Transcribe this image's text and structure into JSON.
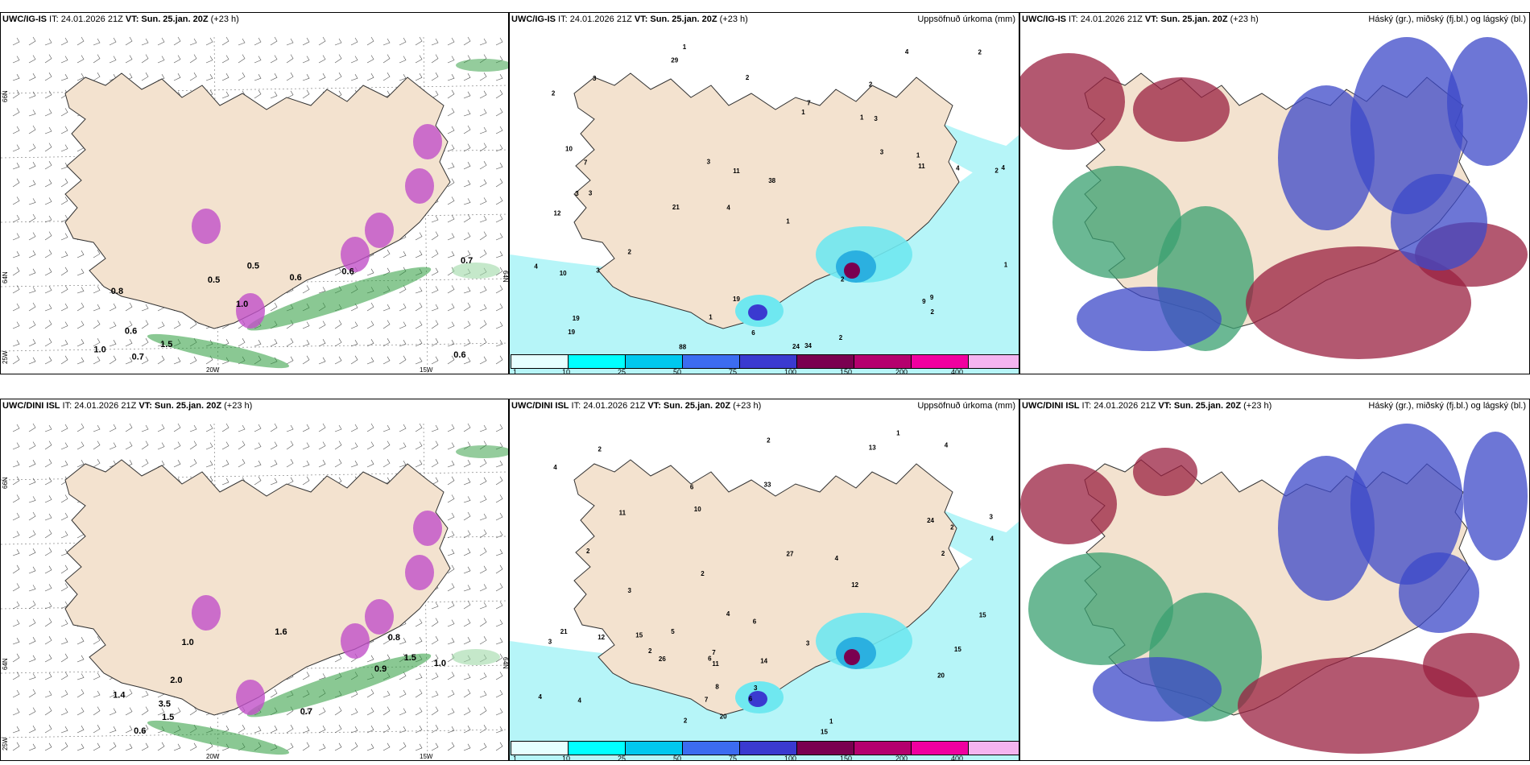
{
  "rows": [
    {
      "wind": {
        "header_model": "UWC/IG-IS",
        "header_it": " IT: 24.01.2026 21Z ",
        "header_vt": "VT: Sun. 25.jan. 20Z",
        "header_lead": " (+23 h)",
        "lat_labels": [
          "66N",
          "64N",
          "25W"
        ],
        "lon_labels": [
          "20W",
          "15W"
        ],
        "side_label": "64N",
        "values": [
          "0.6",
          "0.8",
          "0.7",
          "1.0",
          "0.6",
          "0.7",
          "0.5",
          "0.6",
          "0.6",
          "0.5",
          "1.0",
          "1.5"
        ]
      },
      "precip": {
        "header_model": "UWC/IG-IS",
        "header_it": " IT: 24.01.2026 21Z ",
        "header_vt": "VT: Sun. 25.jan. 20Z",
        "header_lead": " (+23 h)",
        "title_right": "Uppsöfnuð úrkoma (mm)",
        "values": [
          "1",
          "2",
          "2",
          "4",
          "1",
          "3",
          "2",
          "1",
          "12",
          "1",
          "38",
          "19",
          "29",
          "21",
          "24",
          "34",
          "19",
          "4",
          "3",
          "2",
          "7",
          "3",
          "4",
          "4",
          "4",
          "10",
          "11",
          "11",
          "9",
          "10",
          "9",
          "7",
          "3",
          "3",
          "2",
          "1",
          "1",
          "1",
          "2",
          "2",
          "19",
          "88",
          "2",
          "3",
          "6",
          "3",
          "2"
        ]
      },
      "cloud": {
        "header_model": "UWC/IG-IS",
        "header_it": " IT: 24.01.2026 21Z ",
        "header_vt": "VT: Sun. 25.jan. 20Z",
        "header_lead": " (+23 h)",
        "title_right": "Háský (gr.), miðský (fj.bl.) og lágský (bl.)"
      }
    },
    {
      "wind": {
        "header_model": "UWC/DINI ISL",
        "header_it": " IT: 24.01.2026 21Z ",
        "header_vt": "VT: Sun. 25.jan. 20Z",
        "header_lead": " (+23 h)",
        "lat_labels": [
          "66N",
          "64N",
          "25W"
        ],
        "lon_labels": [
          "20W",
          "15W"
        ],
        "side_label": "64N",
        "values": [
          "0.6",
          "0.8",
          "1.0",
          "1.5",
          "0.7",
          "2.0",
          "3.5",
          "1.5",
          "1.0",
          "0.9",
          "1.4",
          "1.6"
        ]
      },
      "precip": {
        "header_model": "UWC/DINI ISL",
        "header_it": " IT: 24.01.2026 21Z ",
        "header_vt": "VT: Sun. 25.jan. 20Z",
        "header_lead": " (+23 h)",
        "title_right": "Uppsöfnuð úrkoma (mm)",
        "values": [
          "3",
          "2",
          "1",
          "4",
          "3",
          "4",
          "3",
          "7",
          "15",
          "13",
          "20",
          "15",
          "24",
          "20",
          "27",
          "26",
          "21",
          "10",
          "6",
          "8",
          "7",
          "6",
          "12",
          "15",
          "15",
          "12",
          "11",
          "4",
          "5",
          "3",
          "4",
          "2",
          "2",
          "4",
          "11",
          "6",
          "6",
          "2",
          "4",
          "2",
          "33",
          "14",
          "2",
          "1",
          "3",
          "2",
          "4",
          "2"
        ]
      },
      "cloud": {
        "header_model": "UWC/DINI ISL",
        "header_it": " IT: 24.01.2026 21Z ",
        "header_vt": "VT: Sun. 25.jan. 20Z",
        "header_lead": " (+23 h)",
        "title_right": "Háský (gr.), miðský (fj.bl.) og lágský (bl.)"
      }
    }
  ],
  "colorbar": {
    "colors": [
      "#e6ffff",
      "#00ffff",
      "#00c8ee",
      "#3c6cf0",
      "#3a3ad0",
      "#7a0050",
      "#b4006e",
      "#f000a0",
      "#f4b4f0"
    ],
    "labels": [
      "1",
      "10",
      "25",
      "50",
      "75",
      "100",
      "150",
      "200",
      "400"
    ]
  },
  "colors": {
    "land": "#f3e2cf",
    "sea_precip": "#b6f5f8",
    "wind_green": "#2a9a3a",
    "cloud_red": "#9a2040",
    "cloud_blue": "#3c48c8",
    "cloud_green": "#3aa070"
  }
}
